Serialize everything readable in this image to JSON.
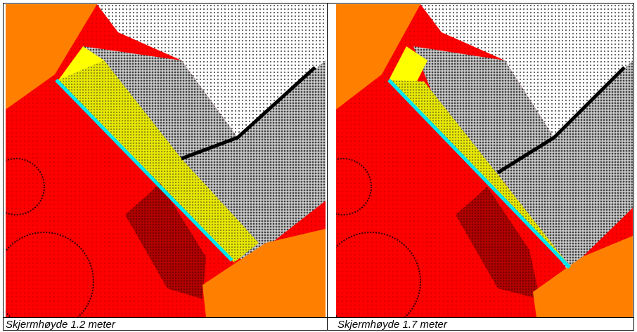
{
  "figures": [
    {
      "caption": "Skjermhøyde 1.2 meter"
    },
    {
      "caption": "Skjermhøyde 1.7 meter"
    }
  ]
}
